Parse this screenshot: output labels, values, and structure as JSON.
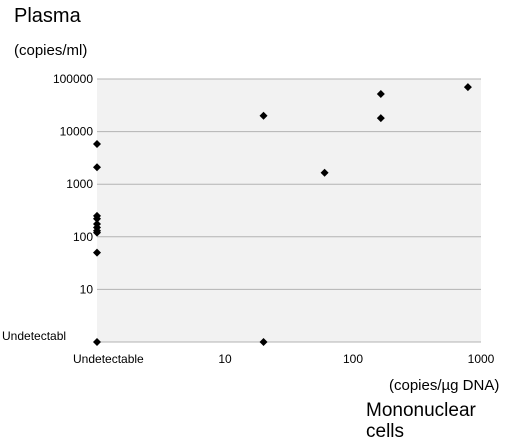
{
  "chart_data": {
    "type": "scatter",
    "title": "",
    "ylabel": "Plasma",
    "ylabel_unit": "(copies/ml)",
    "xlabel_unit": "(copies/µg DNA)",
    "xlabel_line1": "Mononuclear",
    "xlabel_line2": "cells",
    "x_scale": "log",
    "y_scale": "log",
    "xlim": [
      1,
      1000
    ],
    "ylim": [
      1,
      100000
    ],
    "x_ticks": [
      {
        "value": 1,
        "label": "Undetectable"
      },
      {
        "value": 10,
        "label": "10"
      },
      {
        "value": 100,
        "label": "100"
      },
      {
        "value": 1000,
        "label": "1000"
      }
    ],
    "y_ticks": [
      {
        "value": 1,
        "label": "Undetectabl"
      },
      {
        "value": 10,
        "label": "10"
      },
      {
        "value": 100,
        "label": "100"
      },
      {
        "value": 1000,
        "label": "1000"
      },
      {
        "value": 10000,
        "label": "10000"
      },
      {
        "value": 100000,
        "label": "100000"
      }
    ],
    "grid": {
      "horizontal": true,
      "vertical": false
    },
    "marker": "diamond",
    "marker_color": "#000000",
    "plot_background": "#f2f2f2",
    "gridline_color": "#b3b3b3",
    "points": [
      {
        "x": 1,
        "y": 5800
      },
      {
        "x": 1,
        "y": 2100
      },
      {
        "x": 1,
        "y": 250
      },
      {
        "x": 1,
        "y": 220
      },
      {
        "x": 1,
        "y": 175
      },
      {
        "x": 1,
        "y": 150
      },
      {
        "x": 1,
        "y": 130
      },
      {
        "x": 1,
        "y": 120
      },
      {
        "x": 1,
        "y": 50
      },
      {
        "x": 1,
        "y": 1
      },
      {
        "x": 20,
        "y": 20000
      },
      {
        "x": 20,
        "y": 1
      },
      {
        "x": 60,
        "y": 1650
      },
      {
        "x": 165,
        "y": 52000
      },
      {
        "x": 165,
        "y": 18000
      },
      {
        "x": 790,
        "y": 70000
      }
    ]
  }
}
